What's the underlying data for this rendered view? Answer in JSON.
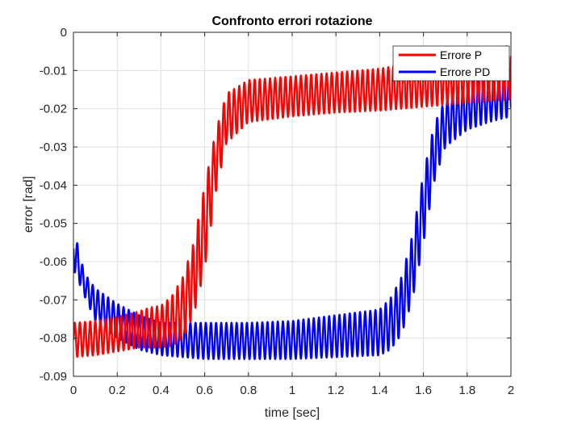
{
  "chart_data": {
    "type": "line",
    "title": "Confronto errori rotazione",
    "xlabel": "time [sec]",
    "ylabel": "error [rad]",
    "xlim": [
      0,
      2
    ],
    "ylim": [
      -0.09,
      0
    ],
    "xticks": [
      0,
      0.2,
      0.4,
      0.6,
      0.8,
      1,
      1.2,
      1.4,
      1.6,
      1.8,
      2
    ],
    "yticks": [
      0,
      -0.01,
      -0.02,
      -0.03,
      -0.04,
      -0.05,
      -0.06,
      -0.07,
      -0.08,
      -0.09
    ],
    "xtick_labels": [
      "0",
      "0.2",
      "0.4",
      "0.6",
      "0.8",
      "1",
      "1.2",
      "1.4",
      "1.6",
      "1.8",
      "2"
    ],
    "ytick_labels": [
      "0",
      "-0.01",
      "-0.02",
      "-0.03",
      "-0.04",
      "-0.05",
      "-0.06",
      "-0.07",
      "-0.08",
      "-0.09"
    ],
    "grid": true,
    "legend_position": "top-right",
    "oscillation_period": 0.0235,
    "series": [
      {
        "name": "Errore P",
        "color": "#ff0000",
        "envelope": {
          "x": [
            0,
            0.1,
            0.2,
            0.3,
            0.35,
            0.4,
            0.45,
            0.5,
            0.55,
            0.6,
            0.65,
            0.7,
            0.8,
            1.0,
            1.2,
            1.4,
            1.6,
            1.8,
            2.0
          ],
          "upper": [
            -0.076,
            -0.0755,
            -0.0745,
            -0.073,
            -0.072,
            -0.0715,
            -0.069,
            -0.064,
            -0.055,
            -0.04,
            -0.026,
            -0.016,
            -0.0125,
            -0.0115,
            -0.0105,
            -0.0095,
            -0.0075,
            -0.005,
            -0.0035
          ],
          "lower": [
            -0.085,
            -0.0845,
            -0.0835,
            -0.0825,
            -0.0825,
            -0.0825,
            -0.082,
            -0.08,
            -0.074,
            -0.062,
            -0.042,
            -0.029,
            -0.0235,
            -0.022,
            -0.021,
            -0.0205,
            -0.0195,
            -0.0185,
            -0.0175
          ]
        }
      },
      {
        "name": "Errore PD",
        "color": "#0000ff",
        "envelope": {
          "x": [
            0,
            0.05,
            0.1,
            0.2,
            0.3,
            0.4,
            0.6,
            0.8,
            1.0,
            1.2,
            1.4,
            1.45,
            1.5,
            1.55,
            1.6,
            1.65,
            1.7,
            1.8,
            1.9,
            2.0
          ],
          "upper": [
            -0.051,
            -0.063,
            -0.067,
            -0.071,
            -0.074,
            -0.076,
            -0.076,
            -0.076,
            -0.0755,
            -0.074,
            -0.0725,
            -0.0695,
            -0.064,
            -0.053,
            -0.037,
            -0.024,
            -0.0175,
            -0.0135,
            -0.0115,
            -0.01
          ],
          "lower": [
            -0.062,
            -0.069,
            -0.0755,
            -0.08,
            -0.083,
            -0.0845,
            -0.0855,
            -0.0855,
            -0.0855,
            -0.085,
            -0.0845,
            -0.083,
            -0.079,
            -0.07,
            -0.055,
            -0.039,
            -0.03,
            -0.0255,
            -0.0235,
            -0.022
          ]
        }
      }
    ]
  }
}
